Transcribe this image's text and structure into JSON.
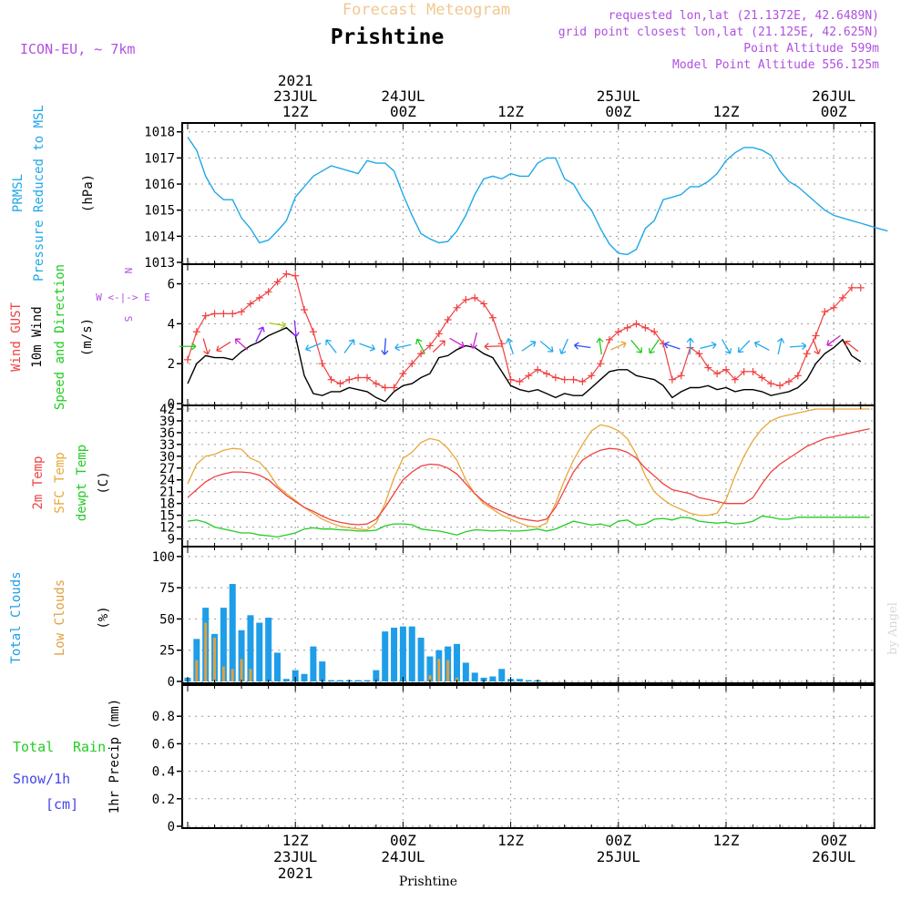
{
  "header": {
    "product": "Forecast Meteogram",
    "location": "Prishtine",
    "model": "ICON-EU, ~ 7km",
    "requested": "requested lon,lat (21.1372E, 42.6489N)",
    "grid_point": "grid point closest lon,lat (21.125E, 42.625N)",
    "point_altitude": "Point Altitude 599m",
    "model_altitude": "Model Point Altitude 556.125m",
    "credit": "by Angel",
    "footer_location": "Prishtine"
  },
  "time_axis": {
    "top_labels": [
      {
        "hour": 12,
        "lines": [
          "2021",
          "23JUL",
          "12Z"
        ]
      },
      {
        "hour": 24,
        "lines": [
          "24JUL",
          "00Z"
        ]
      },
      {
        "hour": 36,
        "lines": [
          "12Z"
        ]
      },
      {
        "hour": 48,
        "lines": [
          "25JUL",
          "00Z"
        ]
      },
      {
        "hour": 60,
        "lines": [
          "12Z"
        ]
      },
      {
        "hour": 72,
        "lines": [
          "26JUL",
          "00Z"
        ]
      }
    ],
    "bottom_labels": [
      {
        "hour": 12,
        "lines": [
          "12Z",
          "23JUL",
          "2021"
        ]
      },
      {
        "hour": 24,
        "lines": [
          "00Z",
          "24JUL"
        ]
      },
      {
        "hour": 36,
        "lines": [
          "12Z"
        ]
      },
      {
        "hour": 48,
        "lines": [
          "00Z",
          "25JUL"
        ]
      },
      {
        "hour": 60,
        "lines": [
          "12Z"
        ]
      },
      {
        "hour": 72,
        "lines": [
          "00Z",
          "26JUL"
        ]
      }
    ]
  },
  "panels": {
    "pressure": {
      "labels": [
        "PRMSL",
        "Pressure Reduced to MSL",
        "(hPa)"
      ]
    },
    "wind": {
      "labels": [
        "Wind GUST",
        "10m Wind",
        "Speed and Direction",
        "(m/s)"
      ],
      "compass": [
        "N",
        "W <-|-> E",
        "S"
      ]
    },
    "temperature": {
      "labels": [
        "2m Temp",
        "SFC Temp",
        "dewpt Temp",
        "(C)"
      ]
    },
    "clouds": {
      "labels": [
        "Total Clouds",
        "Low Clouds",
        "(%)"
      ]
    },
    "precip": {
      "labels": [
        "Total",
        "Rain",
        "Snow/1h",
        "[cm]",
        "1hr Precip (mm)"
      ]
    }
  },
  "colors": {
    "pressure": "#1fa8e8",
    "gust": "#f04040",
    "wind": "#000000",
    "temp2m": "#f04040",
    "sfc": "#e8a838",
    "dew": "#22cc22",
    "total_clouds": "#1e9ee8",
    "low_clouds": "#e0a040",
    "purple": "#b050e0",
    "orange_title": "#f0c890"
  },
  "chart_data": [
    {
      "type": "line",
      "title": "PRMSL",
      "ylabel": "(hPa)",
      "ylim": [
        1013,
        1018.2
      ],
      "yticks": [
        1013,
        1014,
        1015,
        1016,
        1017,
        1018
      ],
      "x_hours": [
        0,
        1,
        2,
        3,
        4,
        5,
        6,
        7,
        8,
        9,
        10,
        11,
        12,
        13,
        14,
        15,
        16,
        17,
        18,
        19,
        20,
        21,
        22,
        23,
        24,
        25,
        26,
        27,
        28,
        29,
        30,
        31,
        32,
        33,
        34,
        35,
        36,
        37,
        38,
        39,
        40,
        41,
        42,
        43,
        44,
        45,
        46,
        47,
        48,
        49,
        50,
        51,
        52,
        53,
        54,
        55,
        56,
        57,
        58,
        59,
        60,
        61,
        62,
        63,
        64,
        65,
        66,
        67,
        68,
        69,
        70,
        71,
        72,
        73,
        74,
        75,
        76,
        77,
        78
      ],
      "series": [
        {
          "name": "PRMSL",
          "values": [
            1017.8,
            1017.3,
            1016.3,
            1015.7,
            1015.4,
            1015.4,
            1014.7,
            1014.3,
            1013.75,
            1013.85,
            1014.2,
            1014.6,
            1015.5,
            1015.9,
            1016.3,
            1016.5,
            1016.7,
            1016.6,
            1016.5,
            1016.4,
            1016.9,
            1016.8,
            1016.8,
            1016.5,
            1015.6,
            1014.8,
            1014.1,
            1013.9,
            1013.75,
            1013.8,
            1014.2,
            1014.8,
            1015.6,
            1016.2,
            1016.3,
            1016.2,
            1016.4,
            1016.3,
            1016.3,
            1016.8,
            1017.0,
            1017.0,
            1016.2,
            1016.0,
            1015.4,
            1015.0,
            1014.3,
            1013.7,
            1013.35,
            1013.3,
            1013.5,
            1014.3,
            1014.6,
            1015.4,
            1015.5,
            1015.6,
            1015.9,
            1015.9,
            1016.1,
            1016.4,
            1016.9,
            1017.2,
            1017.4,
            1017.4,
            1017.3,
            1017.1,
            1016.5,
            1016.1,
            1015.9,
            1015.6,
            1015.3,
            1015.0,
            1014.8,
            1014.7,
            1014.6,
            1014.5,
            1014.4,
            1014.3,
            1014.2
          ]
        }
      ]
    },
    {
      "type": "line",
      "title": "Wind GUST / 10m Wind Speed and Direction",
      "ylabel": "(m/s)",
      "ylim": [
        0,
        6.8
      ],
      "yticks": [
        0,
        2,
        4,
        6
      ],
      "x_hours": [
        0,
        1,
        2,
        3,
        4,
        5,
        6,
        7,
        8,
        9,
        10,
        11,
        12,
        13,
        14,
        15,
        16,
        17,
        18,
        19,
        20,
        21,
        22,
        23,
        24,
        25,
        26,
        27,
        28,
        29,
        30,
        31,
        32,
        33,
        34,
        35,
        36,
        37,
        38,
        39,
        40,
        41,
        42,
        43,
        44,
        45,
        46,
        47,
        48,
        49,
        50,
        51,
        52,
        53,
        54,
        55,
        56,
        57,
        58,
        59,
        60,
        61,
        62,
        63,
        64,
        65,
        66,
        67,
        68,
        69,
        70,
        71,
        72,
        73,
        74,
        75
      ],
      "series": [
        {
          "name": "Wind GUST",
          "values": [
            2.2,
            3.6,
            4.4,
            4.5,
            4.5,
            4.5,
            4.6,
            5.0,
            5.3,
            5.6,
            6.1,
            6.5,
            6.4,
            4.7,
            3.6,
            2.0,
            1.2,
            1.0,
            1.2,
            1.3,
            1.3,
            1.0,
            0.8,
            0.8,
            1.5,
            2.0,
            2.5,
            2.9,
            3.5,
            4.2,
            4.8,
            5.2,
            5.3,
            5.0,
            4.3,
            3.0,
            1.2,
            1.1,
            1.4,
            1.7,
            1.5,
            1.3,
            1.2,
            1.2,
            1.1,
            1.4,
            2.0,
            3.2,
            3.6,
            3.8,
            4.0,
            3.8,
            3.6,
            3.0,
            1.2,
            1.4,
            2.8,
            2.5,
            1.8,
            1.5,
            1.7,
            1.2,
            1.6,
            1.6,
            1.3,
            1.0,
            0.9,
            1.1,
            1.4,
            2.5,
            3.4,
            4.6,
            4.8,
            5.3,
            5.8,
            5.8
          ]
        },
        {
          "name": "10m Wind",
          "values": [
            1.0,
            2.0,
            2.4,
            2.3,
            2.3,
            2.2,
            2.6,
            2.9,
            3.1,
            3.4,
            3.6,
            3.8,
            3.4,
            1.4,
            0.5,
            0.4,
            0.6,
            0.6,
            0.8,
            0.7,
            0.6,
            0.3,
            0.1,
            0.6,
            0.9,
            1.0,
            1.3,
            1.5,
            2.3,
            2.4,
            2.7,
            2.9,
            2.8,
            2.5,
            2.3,
            1.6,
            0.9,
            0.7,
            0.6,
            0.7,
            0.5,
            0.3,
            0.5,
            0.4,
            0.4,
            0.8,
            1.2,
            1.6,
            1.7,
            1.7,
            1.4,
            1.3,
            1.2,
            0.9,
            0.3,
            0.6,
            0.8,
            0.8,
            0.9,
            0.7,
            0.8,
            0.6,
            0.7,
            0.7,
            0.6,
            0.4,
            0.5,
            0.6,
            0.8,
            1.2,
            2.0,
            2.5,
            2.8,
            3.2,
            2.4,
            2.1
          ]
        }
      ],
      "direction_arrows": "colored wind barbs along the 10m wind series"
    },
    {
      "type": "line",
      "title": "Temperature",
      "ylabel": "(C)",
      "ylim": [
        7.5,
        42
      ],
      "yticks": [
        9,
        12,
        15,
        18,
        21,
        24,
        27,
        30,
        33,
        36,
        39,
        42
      ],
      "x_hours": [
        0,
        1,
        2,
        3,
        4,
        5,
        6,
        7,
        8,
        9,
        10,
        11,
        12,
        13,
        14,
        15,
        16,
        17,
        18,
        19,
        20,
        21,
        22,
        23,
        24,
        25,
        26,
        27,
        28,
        29,
        30,
        31,
        32,
        33,
        34,
        35,
        36,
        37,
        38,
        39,
        40,
        41,
        42,
        43,
        44,
        45,
        46,
        47,
        48,
        49,
        50,
        51,
        52,
        53,
        54,
        55,
        56,
        57,
        58,
        59,
        60,
        61,
        62,
        63,
        64,
        65,
        66,
        67,
        68,
        69,
        70,
        71,
        72,
        73,
        74,
        75,
        76
      ],
      "series": [
        {
          "name": "2m Temp",
          "values": [
            19.5,
            21.5,
            23.5,
            24.8,
            25.5,
            26.0,
            26.0,
            25.8,
            25.2,
            24.0,
            22.0,
            20.0,
            18.5,
            17.0,
            16.0,
            14.8,
            13.8,
            13.2,
            12.8,
            12.6,
            12.8,
            14.0,
            17.0,
            20.5,
            24.0,
            26.0,
            27.5,
            28.0,
            27.8,
            27.0,
            25.5,
            23.0,
            20.5,
            18.5,
            17.0,
            16.0,
            15.0,
            14.2,
            13.8,
            13.5,
            14.0,
            17.0,
            21.5,
            26.0,
            29.0,
            30.5,
            31.5,
            32.0,
            31.8,
            31.0,
            29.5,
            27.0,
            25.0,
            23.0,
            21.5,
            21.0,
            20.5,
            19.5,
            19.0,
            18.5,
            18.0,
            18.0,
            18.0,
            19.5,
            23.0,
            26.0,
            28.0,
            29.5,
            31.0,
            32.5,
            33.5,
            34.5,
            35.0,
            35.5,
            36.0,
            36.5,
            37.0
          ]
        },
        {
          "name": "SFC Temp",
          "values": [
            23.0,
            28.0,
            30.0,
            30.5,
            31.5,
            32.0,
            31.8,
            29.5,
            28.5,
            26.0,
            22.5,
            20.5,
            18.8,
            17.0,
            15.5,
            14.0,
            13.0,
            12.2,
            11.8,
            11.5,
            11.3,
            13.0,
            18.0,
            24.5,
            29.5,
            31.0,
            33.5,
            34.5,
            34.0,
            32.0,
            29.0,
            24.0,
            20.5,
            18.0,
            16.5,
            15.0,
            14.0,
            13.0,
            12.2,
            12.0,
            13.0,
            18.0,
            24.0,
            29.0,
            33.0,
            36.5,
            38.0,
            37.5,
            36.5,
            34.5,
            30.5,
            25.0,
            21.0,
            19.0,
            17.5,
            16.5,
            15.5,
            15.0,
            15.0,
            15.5,
            19.0,
            25.0,
            30.0,
            34.0,
            37.0,
            39.0,
            40.0,
            40.5,
            41.0,
            41.5,
            42.0,
            42.0,
            42.0,
            42.0,
            42.0,
            42.0,
            42.0
          ]
        },
        {
          "name": "dewpt Temp",
          "values": [
            13.5,
            13.8,
            13.2,
            12.0,
            11.5,
            11.0,
            10.5,
            10.5,
            10.0,
            9.8,
            9.5,
            10.0,
            10.5,
            11.5,
            11.8,
            11.5,
            11.5,
            11.3,
            11.2,
            11.0,
            11.0,
            11.2,
            12.3,
            12.8,
            12.8,
            12.6,
            11.5,
            11.2,
            11.0,
            10.5,
            10.0,
            10.8,
            11.3,
            11.2,
            11.0,
            11.2,
            11.0,
            11.0,
            11.2,
            11.5,
            11.0,
            11.5,
            12.5,
            13.5,
            13.0,
            12.5,
            12.8,
            12.2,
            13.5,
            13.8,
            12.5,
            12.8,
            14.0,
            14.2,
            13.8,
            14.5,
            14.3,
            13.5,
            13.2,
            13.0,
            13.2,
            12.8,
            13.0,
            13.5,
            14.8,
            14.5,
            14.0,
            14.0,
            14.5,
            14.5,
            14.5,
            14.5,
            14.5,
            14.5,
            14.5,
            14.5,
            14.5
          ]
        }
      ]
    },
    {
      "type": "bar",
      "title": "Clouds",
      "ylabel": "(%)",
      "ylim": [
        0,
        105
      ],
      "yticks": [
        0,
        25,
        50,
        75,
        100
      ],
      "x_hours": [
        0,
        1,
        2,
        3,
        4,
        5,
        6,
        7,
        8,
        9,
        10,
        11,
        12,
        13,
        14,
        15,
        16,
        17,
        18,
        19,
        20,
        21,
        22,
        23,
        24,
        25,
        26,
        27,
        28,
        29,
        30,
        31,
        32,
        33,
        34,
        35,
        36,
        37,
        38,
        39,
        40,
        41,
        42,
        43,
        44,
        45,
        46,
        47,
        48,
        49,
        50,
        51,
        52,
        53,
        54,
        55,
        56,
        57,
        58,
        59,
        60,
        61,
        62,
        63,
        64,
        65,
        66,
        67,
        68,
        69,
        70,
        71,
        72,
        73,
        74,
        75,
        76
      ],
      "series": [
        {
          "name": "Total Clouds",
          "values": [
            3,
            34,
            59,
            38,
            59,
            78,
            41,
            53,
            47,
            51,
            23,
            2,
            9,
            6,
            28,
            16,
            1,
            1,
            1,
            1,
            1,
            9,
            40,
            43,
            44,
            44,
            35,
            20,
            25,
            28,
            30,
            15,
            7,
            3,
            4,
            10,
            2,
            2,
            1,
            1,
            0,
            0,
            0,
            0,
            0,
            0,
            0,
            0,
            0,
            0,
            0,
            0,
            0,
            0,
            0,
            0,
            0,
            0,
            0,
            0,
            0,
            0,
            0,
            0,
            0,
            0,
            0,
            0,
            0,
            0,
            0,
            0,
            0,
            0,
            0,
            0,
            0
          ]
        },
        {
          "name": "Low Clouds",
          "values": [
            0,
            17,
            47,
            35,
            12,
            10,
            18,
            10,
            0,
            0,
            0,
            0,
            0,
            0,
            0,
            0,
            0,
            0,
            0,
            0,
            0,
            0,
            0,
            0,
            0,
            0,
            0,
            5,
            18,
            17,
            3,
            0,
            0,
            0,
            0,
            0,
            0,
            0,
            0,
            0,
            0,
            0,
            0,
            0,
            0,
            0,
            0,
            0,
            0,
            0,
            0,
            0,
            0,
            0,
            0,
            0,
            0,
            0,
            0,
            0,
            0,
            0,
            0,
            0,
            0,
            0,
            0,
            0,
            0,
            0,
            0,
            0,
            0,
            0,
            0,
            0,
            0
          ]
        }
      ]
    },
    {
      "type": "bar",
      "title": "1hr Precip",
      "ylabel": "1hr Precip (mm)",
      "ylim": [
        0,
        1.0
      ],
      "yticks": [
        0,
        0.2,
        0.4,
        0.6,
        0.8
      ],
      "series": [
        {
          "name": "Total Rain",
          "values": []
        },
        {
          "name": "Snow/1h",
          "values": []
        }
      ]
    }
  ]
}
